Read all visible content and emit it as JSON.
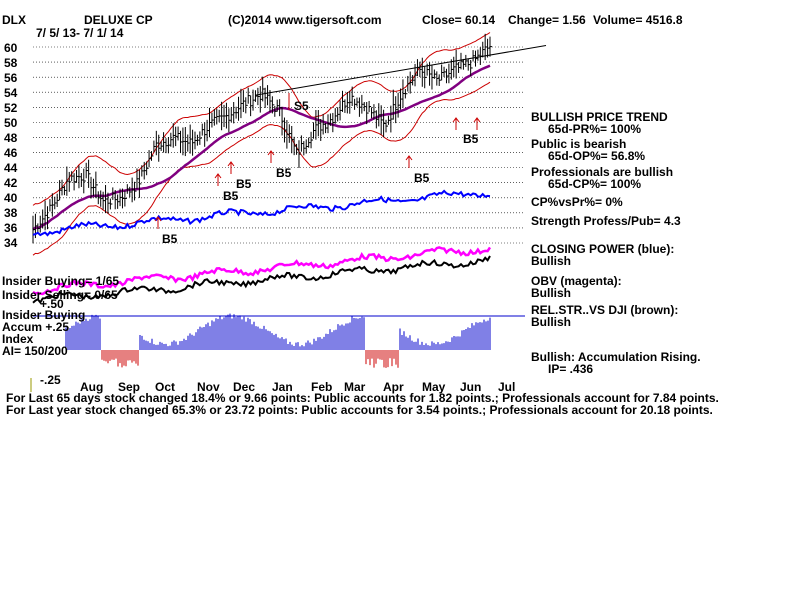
{
  "header": {
    "ticker": "DLX",
    "company": "DELUXE CP",
    "date_range": "7/ 5/ 13- 7/ 1/ 14",
    "copyright": "(C)2014 www.tigersoft.com",
    "close": "Close=  60.14",
    "change": "Change= 1.56",
    "volume": "Volume= 4516.8"
  },
  "y_axis": {
    "labels": [
      "60",
      "58",
      "56",
      "54",
      "52",
      "50",
      "48",
      "46",
      "44",
      "42",
      "40",
      "38",
      "36",
      "34"
    ]
  },
  "x_axis": {
    "labels": [
      "Aug",
      "Sep",
      "Oct",
      "Nov",
      "Dec",
      "Jan",
      "Feb",
      "Mar",
      "Apr",
      "May",
      "Jun",
      "Jul"
    ]
  },
  "signals": {
    "b5_labels": [
      "B5",
      "B5",
      "B5",
      "B5",
      "B5",
      "B5"
    ],
    "s5_label": "S5"
  },
  "left_labels": {
    "insider_buying_1": "Insider Buying= 1/65",
    "insider_selling": "Insider Selling= 0/65",
    "plus50": "+.50",
    "insider_buying_2": "Insider Buying",
    "accum": "Accum  +.25",
    "index": "Index",
    "ai": "AI= 150/200",
    "minus25": "-.25"
  },
  "right_panel": {
    "trend_title": "BULLISH PRICE TREND",
    "pr": "65d-PR%= 100%",
    "public_title": "Public is bearish",
    "op": "65d-OP%= 56.8%",
    "pros_title": "Professionals are bullish",
    "cp": "65d-CP%= 100%",
    "cpvspr": "CP%vsPr%=  0%",
    "strength": "Strength Profess/Pub= 4.3",
    "closing_power": "CLOSING POWER (blue):",
    "closing_power_val": "Bullish",
    "obv": "OBV (magenta):",
    "obv_val": "Bullish",
    "relstr": "REL.STR..VS DJI (brown):",
    "relstr_val": "Bullish",
    "accum": "Bullish: Accumulation Rising.",
    "ip": "IP=  .436"
  },
  "footer": {
    "line1": "For Last 65 days stock changed  18.4% or  9.66 points:  Public accounts for  1.82 points.;  Professionals account for  7.84 points.",
    "line2": "For Last year stock changed  65.3% or  23.72 points:  Public accounts for  3.54 points.;  Professionals account for  20.18 points."
  },
  "colors": {
    "price": "#000000",
    "bands": "#cc0000",
    "ma": "#800080",
    "closing_power": "#0000ff",
    "obv": "#ff00ff",
    "rel_str": "#000000",
    "accum_pos": "#0000cc",
    "accum_neg": "#cc0000",
    "grid": "#000000"
  },
  "chart_data": {
    "type": "line",
    "title": "DELUXE CP",
    "ylim": [
      33,
      62
    ],
    "series": [
      {
        "x": [
          "7/5/13",
          "7/19/13",
          "8/2/13",
          "8/16/13",
          "8/30/13",
          "9/13/13",
          "9/27/13",
          "10/11/13",
          "10/25/13",
          "11/8/13",
          "11/22/13",
          "12/6/13",
          "12/20/13",
          "1/3/14",
          "1/17/14",
          "1/31/14",
          "2/14/14",
          "2/28/14",
          "3/14/14",
          "3/28/14",
          "4/11/14",
          "4/25/14",
          "5/9/14",
          "5/23/14",
          "6/6/14",
          "6/20/14",
          "7/1/14"
        ],
        "values": [
          35.8,
          38.5,
          42.5,
          43.0,
          39.5,
          40.0,
          42.0,
          47.0,
          48.0,
          47.2,
          49.5,
          50.8,
          52.5,
          53.8,
          51.5,
          45.8,
          49.0,
          50.5,
          53.5,
          52.0,
          49.5,
          54.0,
          57.0,
          55.5,
          57.0,
          58.0,
          60.14
        ]
      }
    ]
  }
}
